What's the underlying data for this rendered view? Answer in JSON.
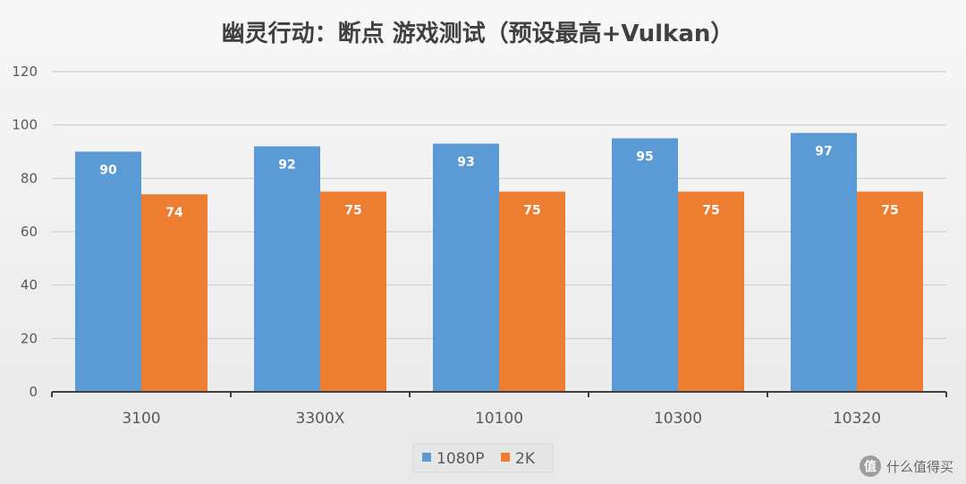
{
  "chart_data": {
    "type": "bar",
    "title": "幽灵行动：断点 游戏测试（预设最高+Vulkan）",
    "categories": [
      "3100",
      "3300X",
      "10100",
      "10300",
      "10320"
    ],
    "series": [
      {
        "name": "1080P",
        "values": [
          90,
          92,
          93,
          95,
          97
        ],
        "color": "#5b9bd5"
      },
      {
        "name": "2K",
        "values": [
          74,
          75,
          75,
          75,
          75
        ],
        "color": "#ed7d31"
      }
    ],
    "ylim": [
      0,
      120
    ],
    "yticks": [
      "0",
      "20",
      "40",
      "60",
      "80",
      "100",
      "120"
    ],
    "grid": true,
    "legend_position": "bottom-center"
  },
  "watermark": {
    "icon_glyph": "值",
    "text": "什么值得买"
  }
}
